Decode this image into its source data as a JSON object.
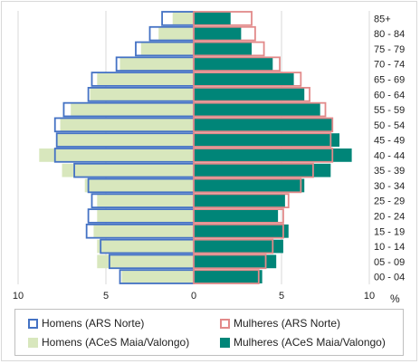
{
  "chart_data": {
    "type": "bar",
    "subtype": "population-pyramid",
    "categories": [
      "85+",
      "80 - 84",
      "75 - 79",
      "70 - 74",
      "65 - 69",
      "60 - 64",
      "55 - 59",
      "50 - 54",
      "45 - 49",
      "40 - 44",
      "35 - 39",
      "30 - 34",
      "25 - 29",
      "20 - 24",
      "15 - 19",
      "10 - 14",
      "05 - 09",
      "00 - 04"
    ],
    "series": [
      {
        "name": "Homens (ARS Norte)",
        "side": "left",
        "style": "outline",
        "color": "#4472c4",
        "values": [
          1.8,
          2.5,
          3.3,
          4.4,
          5.8,
          6.0,
          7.4,
          7.9,
          7.8,
          7.9,
          6.8,
          6.0,
          5.8,
          6.0,
          6.1,
          5.3,
          4.8,
          4.2
        ]
      },
      {
        "name": "Mulheres (ARS Norte)",
        "side": "right",
        "style": "outline",
        "color": "#e28a8a",
        "values": [
          3.3,
          3.5,
          4.0,
          4.9,
          6.1,
          6.6,
          7.5,
          7.9,
          7.8,
          7.9,
          6.8,
          6.1,
          5.4,
          5.1,
          5.1,
          4.5,
          4.1,
          3.7
        ]
      },
      {
        "name": "Homens (ACeS Maia/Valongo)",
        "side": "left",
        "style": "fill",
        "color": "#d8e7bd",
        "values": [
          1.2,
          2.0,
          3.0,
          4.2,
          5.5,
          5.9,
          7.0,
          7.6,
          7.8,
          8.8,
          7.5,
          6.2,
          5.5,
          5.5,
          5.7,
          5.5,
          5.5,
          4.1
        ]
      },
      {
        "name": "Mulheres (ACeS Maia/Valongo)",
        "side": "right",
        "style": "fill",
        "color": "#008578",
        "values": [
          2.1,
          2.7,
          3.3,
          4.5,
          5.7,
          6.3,
          7.2,
          7.9,
          8.3,
          9.0,
          7.8,
          6.3,
          5.2,
          4.8,
          5.4,
          5.1,
          4.7,
          3.9
        ]
      }
    ],
    "xlim": [
      -10,
      10
    ],
    "xticks": [
      "10",
      "5",
      "0",
      "5",
      "10"
    ],
    "xunit": "%",
    "grid": true,
    "legend_position": "bottom"
  }
}
